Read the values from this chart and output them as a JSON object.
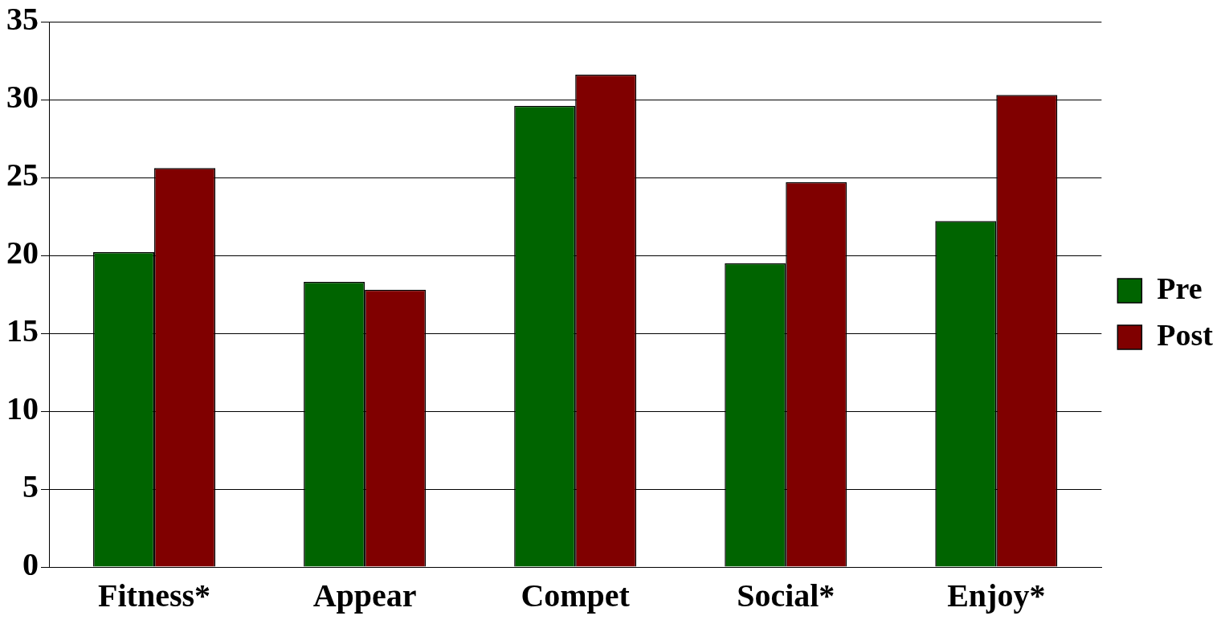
{
  "chart_data": {
    "type": "bar",
    "categories": [
      "Fitness*",
      "Appear",
      "Compet",
      "Social*",
      "Enjoy*"
    ],
    "series": [
      {
        "name": "Pre",
        "color": "#006400",
        "values": [
          20.2,
          18.3,
          29.6,
          19.5,
          22.2
        ]
      },
      {
        "name": "Post",
        "color": "#800000",
        "values": [
          25.6,
          17.8,
          31.6,
          24.7,
          30.3
        ]
      }
    ],
    "ylim": [
      0,
      35
    ],
    "yticks": [
      0,
      5,
      10,
      15,
      20,
      25,
      30,
      35
    ],
    "grid": "y",
    "legend": "right"
  }
}
